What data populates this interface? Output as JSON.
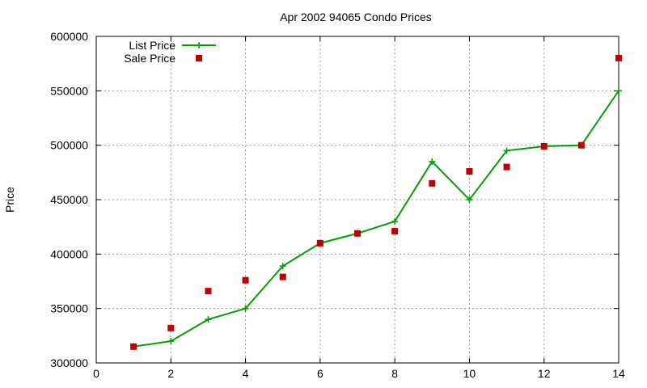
{
  "chart_data": {
    "type": "line",
    "title": "Apr 2002 94065 Condo Prices",
    "xlabel": "",
    "ylabel": "Price",
    "xlim": [
      0,
      14
    ],
    "ylim": [
      300000,
      600000
    ],
    "x_ticks": [
      0,
      2,
      4,
      6,
      8,
      10,
      12,
      14
    ],
    "y_ticks": [
      300000,
      350000,
      400000,
      450000,
      500000,
      550000,
      600000
    ],
    "grid": true,
    "legend_position": "top-left",
    "series": [
      {
        "name": "List Price",
        "style": "line-points",
        "marker": "plus",
        "color": "#00a000",
        "x": [
          1,
          2,
          3,
          4,
          5,
          6,
          7,
          8,
          9,
          10,
          11,
          12,
          13,
          14
        ],
        "y": [
          315000,
          320000,
          340000,
          350000,
          389000,
          410000,
          419000,
          430000,
          485000,
          450000,
          495000,
          499000,
          500000,
          550000
        ]
      },
      {
        "name": "Sale Price",
        "style": "points",
        "marker": "square",
        "color": "#c00000",
        "x": [
          1,
          2,
          3,
          4,
          5,
          6,
          7,
          8,
          9,
          10,
          11,
          12,
          13,
          14
        ],
        "y": [
          315000,
          332000,
          366000,
          376000,
          379000,
          410000,
          419000,
          421000,
          465000,
          476000,
          480000,
          499000,
          500000,
          580000
        ]
      }
    ]
  }
}
